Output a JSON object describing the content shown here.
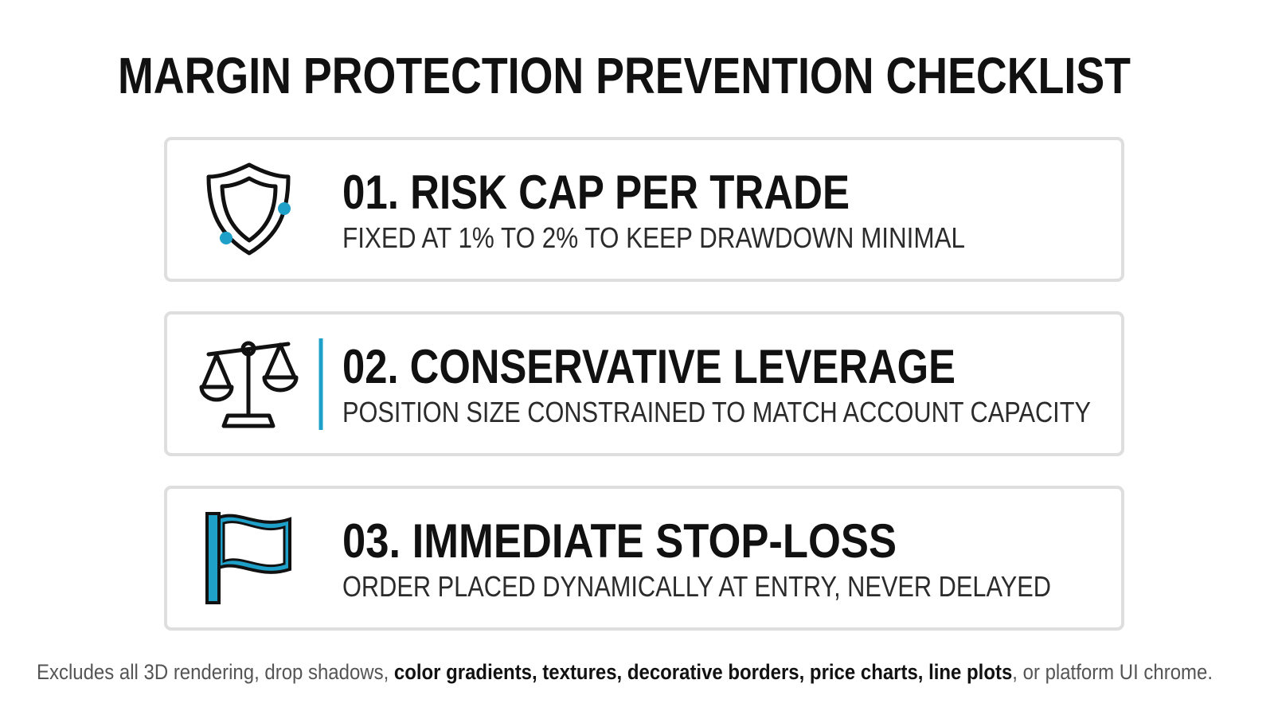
{
  "header": {
    "title": "MARGIN PROTECTION PREVENTION CHECKLIST"
  },
  "items": [
    {
      "title": "01. RISK CAP PER TRADE",
      "description": "FIXED AT 1% TO 2% TO KEEP DRAWDOWN MINIMAL"
    },
    {
      "title": "02. CONSERVATIVE LEVERAGE",
      "description": "POSITION SIZE CONSTRAINED TO MATCH ACCOUNT CAPACITY"
    },
    {
      "title": "03. IMMEDIATE STOP-LOSS",
      "description": "ORDER PLACED DYNAMICALLY AT ENTRY, NEVER DELAYED"
    }
  ],
  "footer": {
    "parts": [
      "Excludes all 3D rendering, drop shadows, ",
      "color gradients, textures, decorative borders, price charts, line plots",
      ", or platform UI chrome."
    ]
  }
}
